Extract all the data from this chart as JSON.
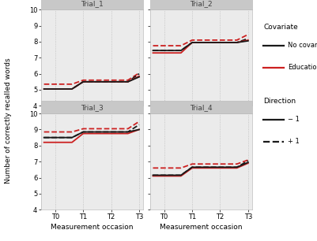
{
  "panels": [
    {
      "title": "Trial_1",
      "ylim": [
        4,
        10
      ],
      "yticks": [
        4,
        5,
        6,
        7,
        8,
        9,
        10
      ],
      "lines": {
        "black_solid": [
          5.05,
          5.05,
          5.05,
          5.5,
          5.5,
          5.5,
          5.5,
          5.8
        ],
        "black_dashed": [
          5.05,
          5.05,
          5.05,
          5.5,
          5.5,
          5.5,
          5.5,
          6.0
        ],
        "red_solid": [
          5.05,
          5.05,
          5.05,
          5.5,
          5.5,
          5.5,
          5.5,
          5.85
        ],
        "red_dashed": [
          5.35,
          5.35,
          5.35,
          5.6,
          5.6,
          5.6,
          5.6,
          6.05
        ]
      }
    },
    {
      "title": "Trial_2",
      "ylim": [
        4,
        10
      ],
      "yticks": [
        4,
        5,
        6,
        7,
        8,
        9,
        10
      ],
      "lines": {
        "black_solid": [
          7.45,
          7.45,
          7.45,
          7.95,
          7.95,
          7.95,
          7.95,
          8.05
        ],
        "black_dashed": [
          7.45,
          7.45,
          7.45,
          7.95,
          7.95,
          7.95,
          7.95,
          8.2
        ],
        "red_solid": [
          7.3,
          7.3,
          7.3,
          7.95,
          7.95,
          7.95,
          7.95,
          8.1
        ],
        "red_dashed": [
          7.75,
          7.75,
          7.75,
          8.1,
          8.1,
          8.1,
          8.1,
          8.45
        ]
      }
    },
    {
      "title": "Trial_3",
      "ylim": [
        4,
        10
      ],
      "yticks": [
        4,
        5,
        6,
        7,
        8,
        9,
        10
      ],
      "lines": {
        "black_solid": [
          8.5,
          8.5,
          8.5,
          8.85,
          8.85,
          8.85,
          8.85,
          9.0
        ],
        "black_dashed": [
          8.5,
          8.5,
          8.5,
          8.85,
          8.85,
          8.85,
          8.85,
          9.3
        ],
        "red_solid": [
          8.2,
          8.2,
          8.2,
          8.75,
          8.75,
          8.75,
          8.75,
          9.0
        ],
        "red_dashed": [
          8.85,
          8.85,
          8.85,
          9.05,
          9.05,
          9.05,
          9.05,
          9.5
        ]
      }
    },
    {
      "title": "Trial_4",
      "ylim": [
        4,
        10
      ],
      "yticks": [
        4,
        5,
        6,
        7,
        8,
        9,
        10
      ],
      "lines": {
        "black_solid": [
          6.15,
          6.15,
          6.15,
          6.65,
          6.65,
          6.65,
          6.65,
          6.95
        ],
        "black_dashed": [
          6.15,
          6.15,
          6.15,
          6.65,
          6.65,
          6.65,
          6.65,
          7.05
        ],
        "red_solid": [
          6.1,
          6.1,
          6.1,
          6.6,
          6.6,
          6.6,
          6.6,
          6.9
        ],
        "red_dashed": [
          6.6,
          6.6,
          6.6,
          6.85,
          6.85,
          6.85,
          6.85,
          7.1
        ]
      }
    }
  ],
  "x_vals": [
    -0.4,
    0.0,
    0.6,
    1.0,
    1.6,
    2.0,
    2.6,
    3.0
  ],
  "xtick_positions": [
    0,
    1,
    2,
    3
  ],
  "xtick_labels": [
    "T0",
    "T1",
    "T2",
    "T3"
  ],
  "xlabel": "Measurement occasion",
  "ylabel": "Number of correctly recalled words",
  "vline_positions": [
    0,
    1,
    2,
    3
  ],
  "legend_covariate_title": "Covariate",
  "legend_covariate_entries": [
    "No covariate",
    "Education"
  ],
  "legend_direction_title": "Direction",
  "legend_direction_entries": [
    "− 1",
    "+ 1"
  ],
  "panel_bg": "#ebebeb",
  "strip_bg": "#c8c8c8",
  "strip_text_color": "#404040",
  "vline_color": "#bbbbbb",
  "line_width": 1.3,
  "black_color": "#1a1a1a",
  "red_color": "#cc2020"
}
